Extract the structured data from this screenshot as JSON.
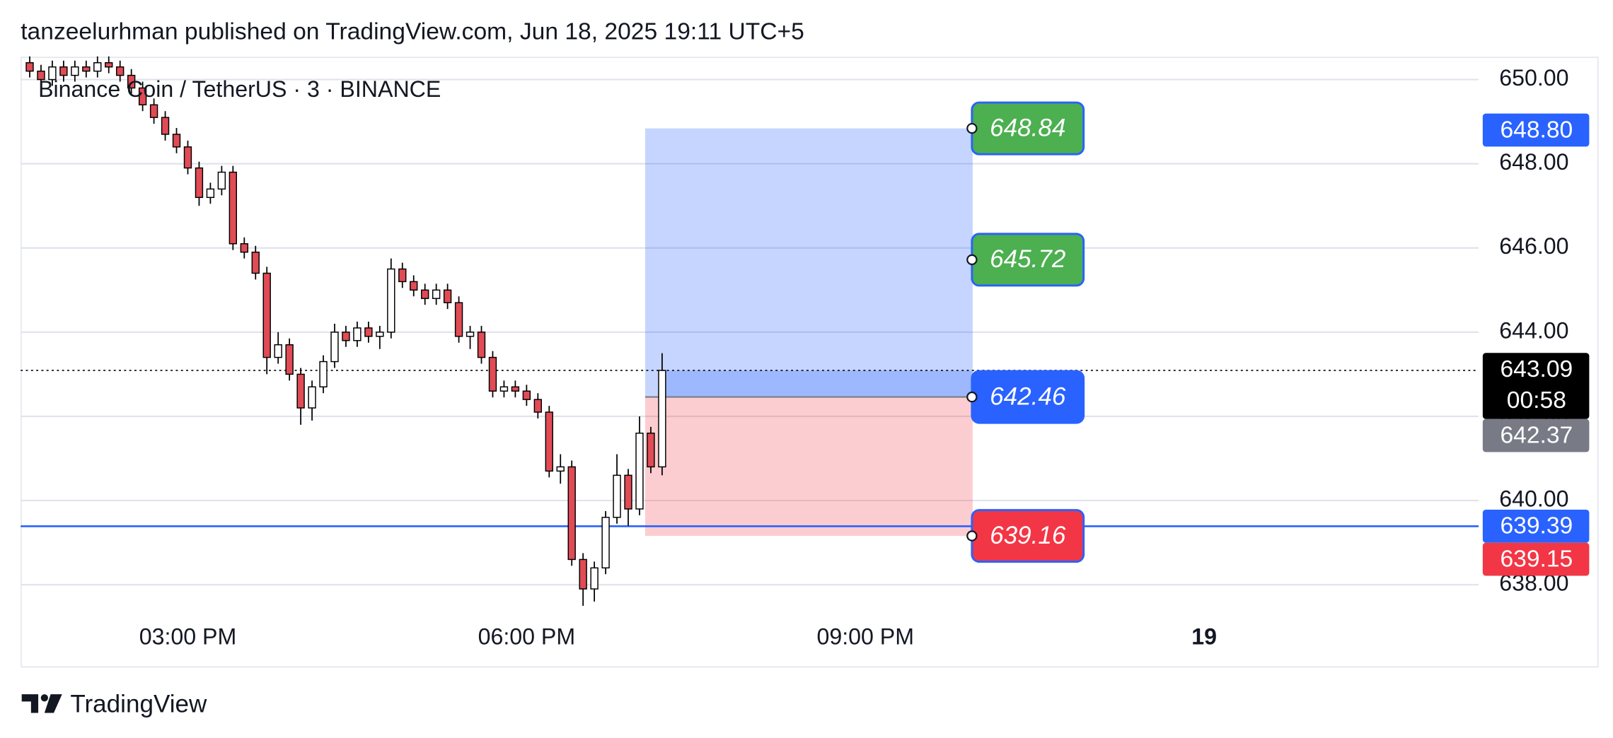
{
  "header": "tanzeelurhman published on TradingView.com, Jun 18, 2025 19:11 UTC+5",
  "footer": "TradingView",
  "chart_data": {
    "type": "candlestick",
    "title": "Binance Coin / TetherUS · 3 · BINANCE",
    "up_color": "#ffffff",
    "down_color": "#e04b55",
    "border_color": "#000000",
    "x": [
      13.6,
      13.7,
      13.8,
      13.9,
      14.0,
      14.1,
      14.2,
      14.3,
      14.4,
      14.5,
      14.6,
      14.7,
      14.8,
      14.9,
      15.0,
      15.1,
      15.2,
      15.3,
      15.4,
      15.5,
      15.6,
      15.7,
      15.8,
      15.9,
      16.0,
      16.1,
      16.2,
      16.3,
      16.4,
      16.5,
      16.6,
      16.7,
      16.8,
      16.9,
      17.0,
      17.1,
      17.2,
      17.3,
      17.4,
      17.5,
      17.6,
      17.7,
      17.8,
      17.9,
      18.0,
      18.1,
      18.2,
      18.3,
      18.4,
      18.5,
      18.6,
      18.7,
      18.8,
      18.9,
      19.0,
      19.1,
      19.2
    ],
    "open": [
      650.4,
      650.2,
      650.0,
      650.3,
      650.1,
      650.3,
      650.2,
      650.4,
      650.3,
      650.1,
      649.8,
      649.4,
      649.1,
      648.7,
      648.4,
      647.9,
      647.2,
      647.4,
      647.8,
      646.1,
      645.9,
      645.4,
      643.4,
      643.7,
      643.0,
      642.2,
      642.7,
      643.3,
      644.0,
      643.8,
      644.1,
      643.9,
      644.0,
      645.5,
      645.2,
      645.0,
      644.8,
      645.0,
      644.7,
      643.9,
      644.0,
      643.4,
      642.6,
      642.7,
      642.6,
      642.4,
      642.1,
      640.7,
      640.8,
      638.6,
      637.9,
      638.4,
      639.6,
      640.6,
      639.8,
      641.6,
      640.8
    ],
    "high": [
      650.55,
      650.35,
      650.45,
      650.45,
      650.45,
      650.45,
      650.55,
      650.55,
      650.45,
      650.25,
      649.95,
      649.55,
      649.25,
      648.85,
      648.55,
      648.05,
      647.55,
      647.95,
      647.95,
      646.25,
      646.05,
      645.55,
      644.0,
      643.85,
      643.15,
      642.85,
      643.45,
      644.2,
      644.15,
      644.25,
      644.25,
      644.15,
      645.75,
      645.65,
      645.35,
      645.15,
      645.15,
      645.15,
      644.85,
      644.15,
      644.15,
      643.55,
      642.85,
      642.85,
      642.75,
      642.55,
      642.25,
      641.1,
      640.95,
      638.75,
      638.55,
      639.75,
      641.1,
      640.75,
      642.0,
      641.75,
      643.5
    ],
    "low": [
      650.05,
      649.85,
      649.85,
      649.95,
      649.95,
      650.05,
      650.05,
      650.15,
      649.95,
      649.65,
      649.25,
      648.95,
      648.55,
      648.25,
      647.75,
      647.0,
      647.05,
      647.25,
      645.95,
      645.75,
      645.25,
      643.0,
      643.25,
      642.85,
      641.8,
      641.9,
      642.55,
      643.15,
      643.65,
      643.65,
      643.75,
      643.6,
      643.85,
      645.05,
      644.85,
      644.65,
      644.65,
      644.55,
      643.75,
      643.6,
      643.25,
      642.45,
      642.45,
      642.45,
      642.25,
      641.95,
      640.55,
      640.4,
      638.45,
      637.5,
      637.6,
      638.25,
      639.45,
      639.4,
      639.65,
      640.65,
      640.6
    ],
    "close": [
      650.2,
      650.0,
      650.3,
      650.1,
      650.3,
      650.2,
      650.4,
      650.3,
      650.1,
      649.8,
      649.4,
      649.1,
      648.7,
      648.4,
      647.9,
      647.2,
      647.4,
      647.8,
      646.1,
      645.9,
      645.4,
      643.4,
      643.7,
      643.0,
      642.2,
      642.7,
      643.3,
      644.0,
      643.8,
      644.1,
      643.9,
      644.0,
      645.5,
      645.2,
      645.0,
      644.8,
      645.0,
      644.7,
      643.9,
      644.0,
      643.4,
      642.6,
      642.7,
      642.6,
      642.4,
      642.1,
      640.7,
      640.8,
      638.6,
      637.9,
      638.4,
      639.6,
      640.6,
      639.8,
      641.6,
      640.8,
      643.09
    ],
    "xlim": [
      13.52,
      26.43
    ],
    "xticks": [
      {
        "value": 15,
        "label": "03:00 PM"
      },
      {
        "value": 18,
        "label": "06:00 PM"
      },
      {
        "value": 21,
        "label": "09:00 PM"
      },
      {
        "value": 24,
        "label": "19"
      }
    ],
    "ylim": [
      636.06,
      650.54
    ],
    "yticks": [
      {
        "value": 638,
        "label": "638.00"
      },
      {
        "value": 640,
        "label": "640.00"
      },
      {
        "value": 642,
        "label": "642.00"
      },
      {
        "value": 644,
        "label": "644.00"
      },
      {
        "value": 646,
        "label": "646.00"
      },
      {
        "value": 648,
        "label": "648.00"
      },
      {
        "value": 650,
        "label": "650.00"
      }
    ],
    "grid": true,
    "horizontal_line": {
      "value": 639.39,
      "color": "#2962ff"
    },
    "position": {
      "start": 19.05,
      "end": 21.95,
      "target": 648.84,
      "mid_level": 645.72,
      "entry": 642.46,
      "stop": 639.16,
      "profit_color": "#4caf50",
      "entry_color": "#2962ff",
      "loss_color": "#f23645"
    },
    "price_tags": [
      {
        "value": 648.8,
        "label": "648.80",
        "color": "#2962ff"
      },
      {
        "value": 643.09,
        "label": "643.09",
        "sub": "00:58",
        "color": "#000000"
      },
      {
        "value": 642.37,
        "label": "642.37",
        "color": "#787b86"
      },
      {
        "value": 639.39,
        "label": "639.39",
        "color": "#2962ff"
      },
      {
        "value": 639.15,
        "label": "639.15",
        "color": "#f23645"
      }
    ]
  }
}
